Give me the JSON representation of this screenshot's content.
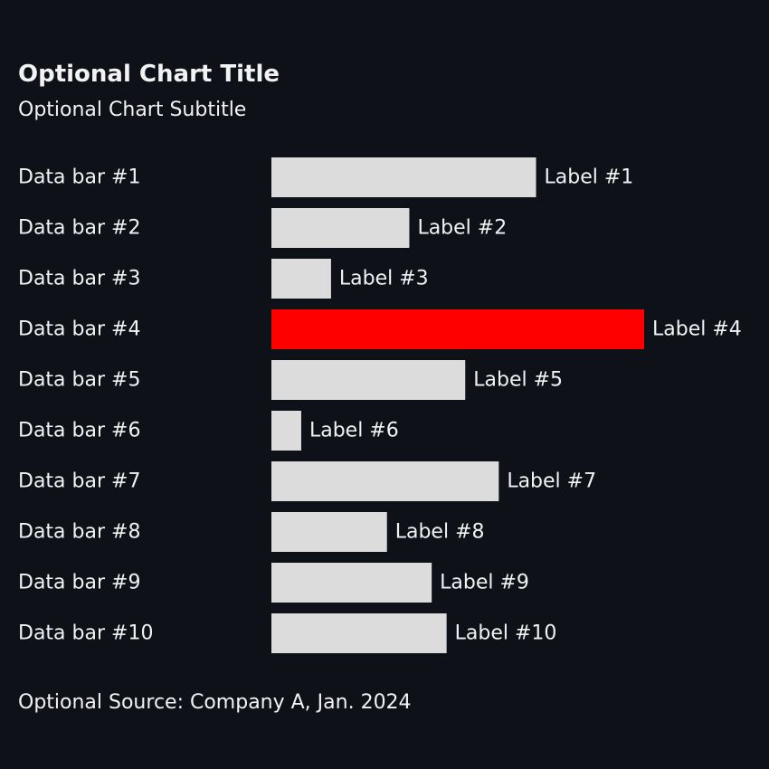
{
  "page": {
    "background": "#0e1118",
    "text_color": "#f2f2f2"
  },
  "chart_data": {
    "type": "bar",
    "orientation": "horizontal",
    "title": "Optional Chart Title",
    "subtitle": "Optional Chart Subtitle",
    "source": "Optional Source: Company A, Jan. 2024",
    "categories": [
      "Data bar #1",
      "Data bar #2",
      "Data bar #3",
      "Data bar #4",
      "Data bar #5",
      "Data bar #6",
      "Data bar #7",
      "Data bar #8",
      "Data bar #9",
      "Data bar #10"
    ],
    "values": [
      7.1,
      3.7,
      1.6,
      10.0,
      5.2,
      0.8,
      6.1,
      3.1,
      4.3,
      4.7
    ],
    "data_labels": [
      "Label #1",
      "Label #2",
      "Label #3",
      "Label #4",
      "Label #5",
      "Label #6",
      "Label #7",
      "Label #8",
      "Label #9",
      "Label #10"
    ],
    "xlim": [
      0,
      10
    ],
    "grid": false,
    "legend": "none",
    "bar_color": "#dcdcdc",
    "highlight_color": "#ff0000",
    "highlight_index": 3
  }
}
